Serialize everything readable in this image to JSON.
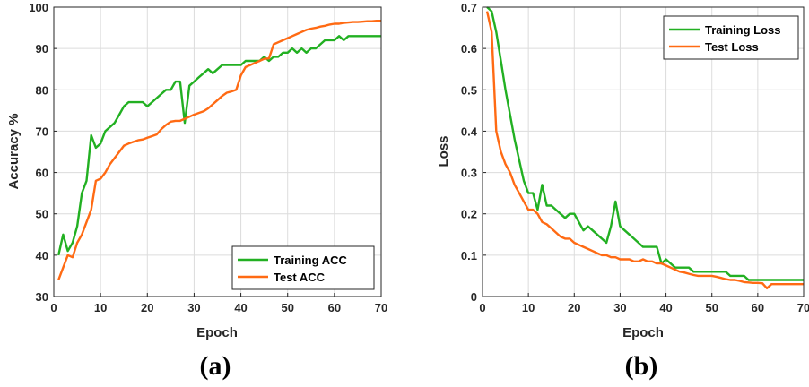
{
  "chart_data": [
    {
      "type": "line",
      "panel_label": "(a)",
      "xlabel": "Epoch",
      "ylabel": "Accuracy %",
      "xlim": [
        0,
        70
      ],
      "ylim": [
        30,
        100
      ],
      "xticks": [
        0,
        10,
        20,
        30,
        40,
        50,
        60,
        70
      ],
      "yticks": [
        30,
        40,
        50,
        60,
        70,
        80,
        90,
        100
      ],
      "grid": true,
      "legend_position": "bottom-right",
      "series": [
        {
          "name": "Training ACC",
          "color": "#22b022",
          "x": [
            1,
            2,
            3,
            4,
            5,
            6,
            7,
            8,
            9,
            10,
            11,
            12,
            13,
            14,
            15,
            16,
            17,
            18,
            19,
            20,
            21,
            22,
            23,
            24,
            25,
            26,
            27,
            28,
            29,
            30,
            31,
            32,
            33,
            34,
            35,
            36,
            37,
            38,
            39,
            40,
            41,
            42,
            43,
            44,
            45,
            46,
            47,
            48,
            49,
            50,
            51,
            52,
            53,
            54,
            55,
            56,
            57,
            58,
            59,
            60,
            61,
            62,
            63,
            64,
            65,
            66,
            67,
            68,
            69,
            70
          ],
          "y": [
            40,
            45,
            41,
            43,
            47,
            55,
            58,
            69,
            66,
            67,
            70,
            71,
            72,
            74,
            76,
            77,
            77,
            77,
            77,
            76,
            77,
            78,
            79,
            80,
            80,
            82,
            82,
            72,
            81,
            82,
            83,
            84,
            85,
            84,
            85,
            86,
            86,
            86,
            86,
            86,
            87,
            87,
            87,
            87,
            88,
            87,
            88,
            88,
            89,
            89,
            90,
            89,
            90,
            89,
            90,
            90,
            91,
            92,
            92,
            92,
            93,
            92,
            93,
            93,
            93,
            93,
            93,
            93,
            93,
            93
          ]
        },
        {
          "name": "Test ACC",
          "color": "#ff6a13",
          "x": [
            1,
            2,
            3,
            4,
            5,
            6,
            7,
            8,
            9,
            10,
            11,
            12,
            13,
            14,
            15,
            16,
            17,
            18,
            19,
            20,
            21,
            22,
            23,
            24,
            25,
            26,
            27,
            28,
            29,
            30,
            31,
            32,
            33,
            34,
            35,
            36,
            37,
            38,
            39,
            40,
            41,
            42,
            43,
            44,
            45,
            46,
            47,
            48,
            49,
            50,
            51,
            52,
            53,
            54,
            55,
            56,
            57,
            58,
            59,
            60,
            61,
            62,
            63,
            64,
            65,
            66,
            67,
            68,
            69,
            70
          ],
          "y": [
            34,
            37,
            40,
            39.5,
            43,
            45,
            48,
            51,
            58,
            58.5,
            60,
            62,
            63.5,
            65,
            66.5,
            67,
            67.4,
            67.8,
            68,
            68.4,
            68.8,
            69.2,
            70.5,
            71.5,
            72.3,
            72.5,
            72.5,
            73,
            73.5,
            74,
            74.4,
            74.8,
            75.5,
            76.5,
            77.5,
            78.5,
            79.3,
            79.6,
            80,
            83.5,
            85.5,
            86,
            86.5,
            87,
            87.5,
            87.6,
            91,
            91.5,
            92,
            92.5,
            93,
            93.5,
            94,
            94.5,
            94.8,
            95,
            95.3,
            95.5,
            95.8,
            96,
            96,
            96.2,
            96.3,
            96.4,
            96.4,
            96.5,
            96.6,
            96.6,
            96.7,
            96.7
          ]
        }
      ]
    },
    {
      "type": "line",
      "panel_label": "(b)",
      "xlabel": "Epoch",
      "ylabel": "Loss",
      "xlim": [
        0,
        70
      ],
      "ylim": [
        0,
        0.7
      ],
      "xticks": [
        0,
        10,
        20,
        30,
        40,
        50,
        60,
        70
      ],
      "xtick_labels": [
        "0",
        "10",
        "20",
        "30",
        "40",
        "50",
        "60",
        "70"
      ],
      "yticks": [
        0,
        0.1,
        0.2,
        0.3,
        0.4,
        0.5,
        0.6,
        0.7
      ],
      "ytick_labels": [
        "0",
        "0.1",
        "0.2",
        "0.3",
        "0.4",
        "0.5",
        "0.6",
        "0.7"
      ],
      "grid": true,
      "legend_position": "top-right",
      "series": [
        {
          "name": "Training Loss",
          "color": "#22b022",
          "x": [
            1,
            2,
            3,
            4,
            5,
            6,
            7,
            8,
            9,
            10,
            11,
            12,
            13,
            14,
            15,
            16,
            17,
            18,
            19,
            20,
            21,
            22,
            23,
            24,
            25,
            26,
            27,
            28,
            29,
            30,
            31,
            32,
            33,
            34,
            35,
            36,
            37,
            38,
            39,
            40,
            41,
            42,
            43,
            44,
            45,
            46,
            47,
            48,
            49,
            50,
            51,
            52,
            53,
            54,
            55,
            56,
            57,
            58,
            59,
            60,
            61,
            62,
            63,
            64,
            65,
            66,
            67,
            68,
            69,
            70
          ],
          "y": [
            0.7,
            0.69,
            0.64,
            0.57,
            0.5,
            0.44,
            0.38,
            0.33,
            0.28,
            0.25,
            0.25,
            0.21,
            0.27,
            0.22,
            0.22,
            0.21,
            0.2,
            0.19,
            0.2,
            0.2,
            0.18,
            0.16,
            0.17,
            0.16,
            0.15,
            0.14,
            0.13,
            0.17,
            0.23,
            0.17,
            0.16,
            0.15,
            0.14,
            0.13,
            0.12,
            0.12,
            0.12,
            0.12,
            0.08,
            0.09,
            0.08,
            0.07,
            0.07,
            0.07,
            0.07,
            0.06,
            0.06,
            0.06,
            0.06,
            0.06,
            0.06,
            0.06,
            0.06,
            0.05,
            0.05,
            0.05,
            0.05,
            0.04,
            0.04,
            0.04,
            0.04,
            0.04,
            0.04,
            0.04,
            0.04,
            0.04,
            0.04,
            0.04,
            0.04,
            0.04
          ]
        },
        {
          "name": "Test  Loss",
          "color": "#ff6a13",
          "x": [
            1,
            2,
            3,
            4,
            5,
            6,
            7,
            8,
            9,
            10,
            11,
            12,
            13,
            14,
            15,
            16,
            17,
            18,
            19,
            20,
            21,
            22,
            23,
            24,
            25,
            26,
            27,
            28,
            29,
            30,
            31,
            32,
            33,
            34,
            35,
            36,
            37,
            38,
            39,
            40,
            41,
            42,
            43,
            44,
            45,
            46,
            47,
            48,
            49,
            50,
            51,
            52,
            53,
            54,
            55,
            56,
            57,
            58,
            59,
            60,
            61,
            62,
            63,
            64,
            65,
            66,
            67,
            68,
            69,
            70
          ],
          "y": [
            0.69,
            0.64,
            0.4,
            0.35,
            0.32,
            0.3,
            0.27,
            0.25,
            0.23,
            0.21,
            0.21,
            0.2,
            0.18,
            0.175,
            0.165,
            0.155,
            0.145,
            0.14,
            0.14,
            0.13,
            0.125,
            0.12,
            0.115,
            0.11,
            0.105,
            0.1,
            0.1,
            0.095,
            0.095,
            0.09,
            0.09,
            0.09,
            0.085,
            0.085,
            0.09,
            0.085,
            0.085,
            0.08,
            0.08,
            0.075,
            0.07,
            0.065,
            0.06,
            0.058,
            0.055,
            0.052,
            0.05,
            0.05,
            0.05,
            0.05,
            0.048,
            0.045,
            0.042,
            0.04,
            0.04,
            0.038,
            0.035,
            0.034,
            0.033,
            0.033,
            0.032,
            0.02,
            0.03,
            0.03,
            0.03,
            0.03,
            0.03,
            0.03,
            0.03,
            0.03
          ]
        }
      ]
    }
  ]
}
